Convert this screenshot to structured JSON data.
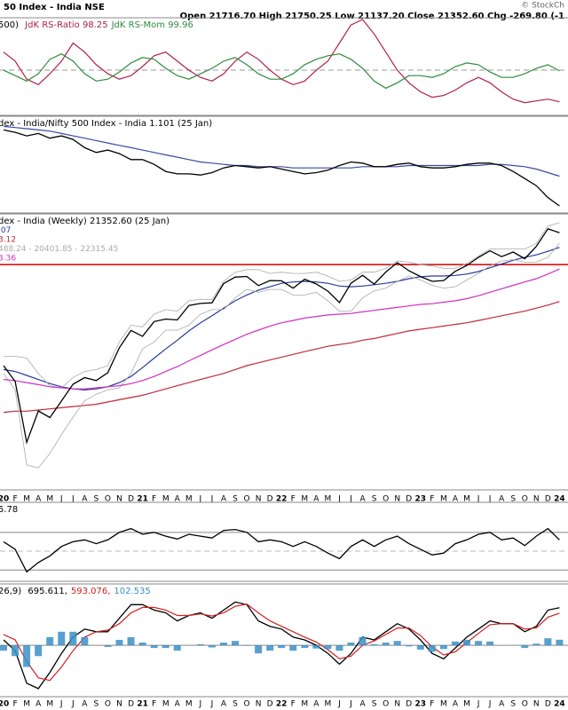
{
  "header": {
    "title": "50 Index - India NSE",
    "ohlc": "Open 21716.70  High 21750.25  Low 21137.20  Close 21352.60  Chg -269.80 (-1",
    "credit": "© StockCh"
  },
  "chart_data": [
    {
      "type": "line",
      "title": "500) ",
      "legend": "inline",
      "ylim": [
        97.5,
        102.8
      ],
      "hlines": [
        {
          "value": 100,
          "color": "#999999",
          "dash": true
        }
      ],
      "series": [
        {
          "name": "JdK RS-Ratio 98.25",
          "color": "#b0204a",
          "values": [
            101,
            100.5,
            99.5,
            99.2,
            99.8,
            100.5,
            101.5,
            101,
            100.3,
            99.8,
            99.5,
            99.7,
            100.2,
            100.8,
            101,
            100.5,
            100,
            99.6,
            99.4,
            99.8,
            100.5,
            101,
            100.6,
            100,
            99.5,
            99.2,
            99.4,
            100,
            100.5,
            101.5,
            102.5,
            102.8,
            102,
            101,
            100,
            99.3,
            98.8,
            98.5,
            98.6,
            98.9,
            99.3,
            99.6,
            99.3,
            98.8,
            98.4,
            98.2,
            98.3,
            98.4,
            98.25
          ]
        },
        {
          "name": "JdK RS-Mom 99.96",
          "color": "#2e8b3e",
          "values": [
            100,
            99.7,
            99.4,
            99.8,
            100.6,
            100.9,
            100.5,
            99.8,
            99.4,
            99.5,
            99.9,
            100.4,
            100.7,
            100.6,
            100.1,
            99.7,
            99.5,
            99.8,
            100.1,
            100.5,
            100.7,
            100.3,
            99.8,
            99.5,
            99.5,
            99.8,
            100.3,
            100.6,
            100.8,
            100.9,
            100.6,
            100.1,
            99.4,
            99,
            99.3,
            99.7,
            99.7,
            99.6,
            99.8,
            100.2,
            100.4,
            100.3,
            99.9,
            99.6,
            99.6,
            99.8,
            100.1,
            100.3,
            99.96
          ]
        }
      ]
    },
    {
      "type": "line",
      "title": "dex - India/Nifty 500 Index - India 1.101 (25 Jan)",
      "legend": "inline",
      "ylim": [
        1.095,
        1.175
      ],
      "series": [
        {
          "color": "#3a4aa0",
          "values": [
            1.168,
            1.167,
            1.166,
            1.165,
            1.164,
            1.162,
            1.16,
            1.158,
            1.156,
            1.154,
            1.152,
            1.15,
            1.148,
            1.146,
            1.144,
            1.142,
            1.14,
            1.138,
            1.137,
            1.136,
            1.135,
            1.135,
            1.134,
            1.134,
            1.134,
            1.133,
            1.133,
            1.133,
            1.133,
            1.133,
            1.133,
            1.134,
            1.134,
            1.134,
            1.134,
            1.135,
            1.135,
            1.135,
            1.135,
            1.135,
            1.135,
            1.135,
            1.136,
            1.136,
            1.135,
            1.134,
            1.132,
            1.129,
            1.126
          ]
        },
        {
          "color": "#000000",
          "values": [
            1.165,
            1.163,
            1.16,
            1.162,
            1.158,
            1.16,
            1.157,
            1.15,
            1.146,
            1.148,
            1.145,
            1.14,
            1.14,
            1.136,
            1.13,
            1.128,
            1.128,
            1.127,
            1.129,
            1.133,
            1.135,
            1.134,
            1.133,
            1.134,
            1.132,
            1.13,
            1.128,
            1.129,
            1.131,
            1.135,
            1.138,
            1.137,
            1.134,
            1.134,
            1.136,
            1.137,
            1.134,
            1.133,
            1.133,
            1.134,
            1.136,
            1.137,
            1.137,
            1.135,
            1.13,
            1.124,
            1.118,
            1.108,
            1.101
          ]
        }
      ]
    },
    {
      "type": "line",
      "title": "dex - India (Weekly) 21352.60 (25 Jan)",
      "legend": "stacked",
      "log": true,
      "ylim": [
        7000,
        23000
      ],
      "categories": [
        "20",
        "F",
        "M",
        "A",
        "M",
        "J",
        "J",
        "A",
        "S",
        "O",
        "N",
        "D",
        "21",
        "F",
        "M",
        "A",
        "M",
        "J",
        "J",
        "A",
        "S",
        "O",
        "N",
        "D",
        "22",
        "F",
        "M",
        "A",
        "M",
        "J",
        "J",
        "A",
        "S",
        "O",
        "N",
        "D",
        "23",
        "F",
        "M",
        "A",
        "M",
        "J",
        "J",
        "A",
        "S",
        "O",
        "N",
        "D",
        "24"
      ],
      "hlines": [
        {
          "value": 18600,
          "color": "#cc0000",
          "dash": false
        }
      ],
      "series": [
        {
          "name": ".07",
          "color": "#2a3a9a",
          "values": [
            11800,
            11700,
            11500,
            11300,
            11100,
            10950,
            10850,
            10800,
            10850,
            10950,
            11150,
            11450,
            11900,
            12400,
            12900,
            13400,
            13950,
            14450,
            14900,
            15400,
            15900,
            16300,
            16650,
            16900,
            17150,
            17250,
            17300,
            17250,
            17150,
            16950,
            16900,
            16950,
            17050,
            17150,
            17300,
            17500,
            17650,
            17700,
            17700,
            17750,
            17850,
            18050,
            18350,
            18650,
            18950,
            19200,
            19400,
            19700,
            20050
          ]
        },
        {
          "name": "3.12",
          "color": "#c0283a",
          "values": [
            9800,
            9850,
            9850,
            9900,
            9950,
            10000,
            10050,
            10100,
            10150,
            10250,
            10350,
            10450,
            10550,
            10700,
            10850,
            11000,
            11150,
            11300,
            11450,
            11600,
            11800,
            12000,
            12150,
            12300,
            12450,
            12600,
            12750,
            12900,
            13050,
            13150,
            13250,
            13400,
            13500,
            13650,
            13800,
            13950,
            14050,
            14150,
            14250,
            14350,
            14450,
            14600,
            14750,
            14900,
            15050,
            15200,
            15400,
            15600,
            15850
          ]
        },
        {
          "name": "488.24 - 20401.85 - 22315.45",
          "color": "#aaaaaa",
          "upper": [
            12500,
            12500,
            12400,
            11600,
            11000,
            10900,
            11400,
            11700,
            11800,
            12000,
            13300,
            14300,
            14200,
            15000,
            15300,
            15200,
            15900,
            16000,
            16000,
            17300,
            18000,
            18200,
            18200,
            17900,
            18000,
            17900,
            17900,
            18000,
            17700,
            17300,
            17400,
            18000,
            18000,
            18300,
            18900,
            18800,
            18600,
            18500,
            18300,
            18300,
            18700,
            19300,
            19900,
            19900,
            19900,
            19900,
            20400,
            22000,
            22300
          ],
          "lower": [
            11600,
            10800,
            7800,
            7700,
            8200,
            8900,
            9600,
            10300,
            10600,
            10800,
            10900,
            11600,
            12900,
            13300,
            14000,
            14000,
            14300,
            15000,
            15300,
            15300,
            16100,
            16700,
            16500,
            16700,
            16700,
            16300,
            16300,
            16500,
            15900,
            15200,
            15200,
            16100,
            16600,
            16800,
            17300,
            17700,
            17400,
            17000,
            16800,
            16900,
            17400,
            17900,
            18500,
            18900,
            19000,
            18800,
            18800,
            19200,
            20400
          ]
        },
        {
          "name": "3.36",
          "color": "#d030c0",
          "values": [
            11300,
            11250,
            11150,
            11050,
            10950,
            10900,
            10850,
            10850,
            10900,
            10950,
            11000,
            11100,
            11250,
            11450,
            11700,
            11950,
            12250,
            12550,
            12850,
            13150,
            13450,
            13750,
            14000,
            14250,
            14450,
            14600,
            14750,
            14850,
            14950,
            15000,
            15050,
            15150,
            15250,
            15350,
            15450,
            15550,
            15650,
            15700,
            15800,
            15900,
            16050,
            16250,
            16500,
            16750,
            17000,
            17250,
            17500,
            17850,
            18250
          ]
        },
        {
          "color": "#000000",
          "values": [
            12000,
            11200,
            8600,
            9860,
            9580,
            10300,
            11070,
            11390,
            11250,
            11640,
            12970,
            13980,
            13630,
            14530,
            14690,
            14630,
            15580,
            15720,
            15760,
            17130,
            17620,
            17670,
            16980,
            17350,
            17340,
            16790,
            17460,
            17100,
            16580,
            15780,
            17160,
            17760,
            17090,
            18010,
            18760,
            18110,
            17660,
            17300,
            17360,
            18070,
            18530,
            19190,
            19750,
            19250,
            19640,
            19080,
            20130,
            21730,
            21350
          ]
        }
      ]
    },
    {
      "type": "line",
      "title": "5.78",
      "legend": "inline",
      "ylim": [
        18,
        100
      ],
      "hlines": [
        {
          "value": 70,
          "color": "#888888",
          "dash": false
        },
        {
          "value": 50,
          "color": "#bbbbbb",
          "dash": true
        },
        {
          "value": 30,
          "color": "#888888",
          "dash": false
        }
      ],
      "series": [
        {
          "color": "#000000",
          "values": [
            60,
            52,
            28,
            38,
            45,
            55,
            60,
            62,
            58,
            62,
            70,
            74,
            68,
            70,
            66,
            63,
            68,
            66,
            64,
            72,
            73,
            70,
            60,
            62,
            60,
            55,
            60,
            55,
            48,
            42,
            55,
            62,
            55,
            62,
            66,
            58,
            52,
            46,
            48,
            58,
            62,
            68,
            70,
            62,
            64,
            56,
            66,
            74,
            62
          ]
        }
      ]
    },
    {
      "type": "line",
      "title": "26,9) ",
      "legend": "inline",
      "ylim": [
        -950,
        1100
      ],
      "categories": [
        "20",
        "F",
        "M",
        "A",
        "M",
        "J",
        "J",
        "A",
        "S",
        "O",
        "N",
        "D",
        "21",
        "F",
        "M",
        "A",
        "M",
        "J",
        "J",
        "A",
        "S",
        "O",
        "N",
        "D",
        "22",
        "F",
        "M",
        "A",
        "M",
        "J",
        "J",
        "A",
        "S",
        "O",
        "N",
        "D",
        "23",
        "F",
        "M",
        "A",
        "M",
        "J",
        "J",
        "A",
        "S",
        "O",
        "N",
        "D",
        "24"
      ],
      "hlines": [
        {
          "value": 0,
          "color": "#888888",
          "dash": false
        }
      ],
      "series": [
        {
          "name": "695.611,",
          "color": "#000000",
          "values": [
            100,
            -100,
            -700,
            -800,
            -500,
            -150,
            150,
            300,
            250,
            250,
            500,
            750,
            750,
            650,
            600,
            450,
            550,
            600,
            500,
            650,
            800,
            750,
            450,
            350,
            300,
            150,
            100,
            0,
            -150,
            -350,
            -150,
            150,
            100,
            250,
            400,
            300,
            100,
            -150,
            -250,
            -50,
            150,
            300,
            450,
            400,
            400,
            250,
            350,
            650,
            695.611
          ]
        },
        {
          "name": "593.076,",
          "color": "#d02020",
          "values": [
            200,
            100,
            -300,
            -600,
            -650,
            -400,
            -100,
            150,
            250,
            280,
            400,
            600,
            700,
            700,
            650,
            550,
            550,
            580,
            540,
            600,
            720,
            760,
            600,
            450,
            350,
            250,
            150,
            60,
            -80,
            -250,
            -200,
            0,
            80,
            200,
            320,
            320,
            180,
            -30,
            -180,
            -120,
            50,
            220,
            380,
            400,
            400,
            300,
            320,
            520,
            593.076
          ]
        },
        {
          "name": "102.535",
          "color": "#3a8fc8",
          "bars": true,
          "values": [
            -100,
            -200,
            -400,
            -200,
            150,
            250,
            250,
            150,
            0,
            -30,
            100,
            150,
            50,
            -50,
            -50,
            -100,
            0,
            20,
            -40,
            50,
            80,
            -10,
            -150,
            -100,
            -50,
            -100,
            -50,
            -60,
            -70,
            -100,
            50,
            150,
            20,
            50,
            80,
            -20,
            -80,
            -120,
            -70,
            70,
            100,
            80,
            70,
            0,
            0,
            -50,
            30,
            130,
            102.535
          ]
        }
      ]
    }
  ]
}
